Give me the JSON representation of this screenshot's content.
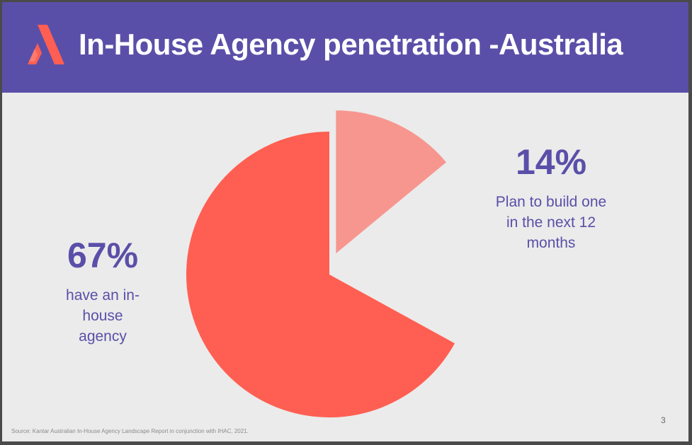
{
  "slide": {
    "title": "In-House Agency penetration -Australia",
    "source": "Source: Kantar Australian In-House Agency Landscape Report in conjunction with IHAC, 2021.",
    "page_number": "3",
    "logo_icon": "agency-a-logo-icon"
  },
  "colors": {
    "header_bg": "#5a4fa8",
    "accent_text": "#5a4fa8",
    "slice_main": "#ff5f52",
    "slice_secondary": "#f7968f",
    "slide_bg": "#ebebeb"
  },
  "chart_data": {
    "type": "pie",
    "categories": [
      "have an in-house agency",
      "Plan to build one in the next 12 months"
    ],
    "values": [
      67,
      14
    ],
    "labels": [
      "67%",
      "14%"
    ],
    "exploded": [
      false,
      true
    ]
  },
  "stats": [
    {
      "value": "67%",
      "description": "have an in-house agency"
    },
    {
      "value": "14%",
      "description": "Plan to build one in the next 12 months"
    }
  ]
}
